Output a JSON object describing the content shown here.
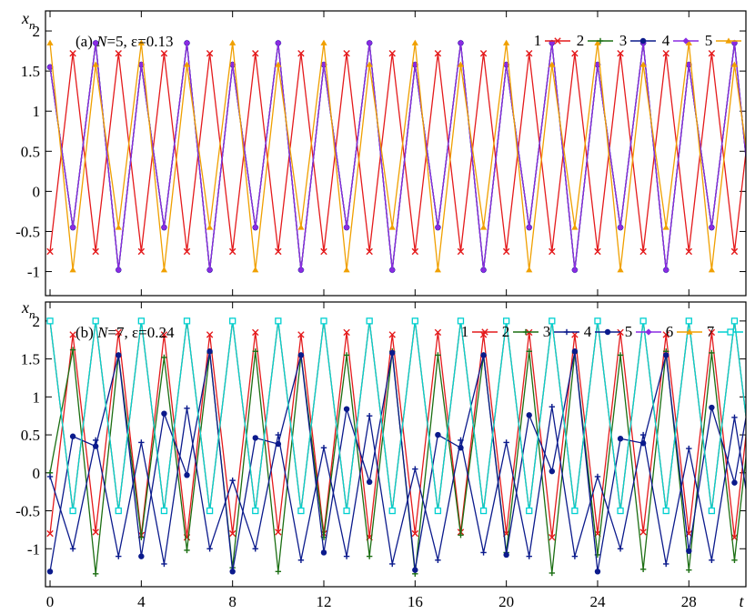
{
  "colors": {
    "1": "#e41a1c",
    "2": "#1b6e12",
    "3": "#0b1a8c",
    "4": "#8a2be2",
    "5": "#f0a000",
    "6": "#a52a2a",
    "7": "#00d0d0"
  },
  "chart_data": [
    {
      "type": "line",
      "title": "(a) N=5, ε=0.13",
      "title_parts": [
        "(a) ",
        "N",
        "=5, ε=0.13"
      ],
      "ylabel_main": "x",
      "ylabel_sub": "n",
      "xlabel": "t",
      "xlim": [
        -0.2,
        30.5
      ],
      "ylim": [
        -1.3,
        2.25
      ],
      "yticks": [
        -1,
        -0.5,
        0,
        0.5,
        1,
        1.5,
        2
      ],
      "ytick_labels": [
        "-1",
        "-0.5",
        "0",
        "0.5",
        "1",
        "1.5",
        "2"
      ],
      "xticks": [
        0,
        4,
        8,
        12,
        16,
        20,
        24,
        28
      ],
      "legend_position": "top-right",
      "legend_numbers": [
        "1",
        "2",
        "3",
        "4",
        "5"
      ],
      "series": [
        {
          "name": "1",
          "color_key": "1",
          "marker": "x",
          "values": [
            -0.75,
            1.72,
            -0.75,
            1.72,
            -0.75,
            1.72,
            -0.75,
            1.72,
            -0.75,
            1.72,
            -0.75,
            1.72,
            -0.75,
            1.72,
            -0.75,
            1.72,
            -0.75,
            1.72,
            -0.75,
            1.72,
            -0.75,
            1.72,
            -0.75,
            1.72,
            -0.75,
            1.72,
            -0.75,
            1.72,
            -0.75,
            1.72,
            -0.75,
            1.72
          ]
        },
        {
          "name": "2",
          "color_key": "2",
          "marker": "plus",
          "values": [
            1.55,
            -0.45,
            1.85,
            -0.98,
            1.58,
            -0.45,
            1.85,
            -0.98,
            1.58,
            -0.45,
            1.85,
            -0.98,
            1.58,
            -0.45,
            1.85,
            -0.98,
            1.58,
            -0.45,
            1.85,
            -0.98,
            1.58,
            -0.45,
            1.85,
            -0.98,
            1.58,
            -0.45,
            1.85,
            -0.98,
            1.58,
            -0.45,
            1.85,
            -0.98
          ]
        },
        {
          "name": "3",
          "color_key": "3",
          "marker": "circle",
          "values": [
            1.55,
            -0.45,
            1.85,
            -0.98,
            1.58,
            -0.45,
            1.85,
            -0.98,
            1.58,
            -0.45,
            1.85,
            -0.98,
            1.58,
            -0.45,
            1.85,
            -0.98,
            1.58,
            -0.45,
            1.85,
            -0.98,
            1.58,
            -0.45,
            1.85,
            -0.98,
            1.58,
            -0.45,
            1.85,
            -0.98,
            1.58,
            -0.45,
            1.85,
            -0.98
          ]
        },
        {
          "name": "4",
          "color_key": "4",
          "marker": "diamond",
          "values": [
            1.55,
            -0.45,
            1.85,
            -0.98,
            1.58,
            -0.45,
            1.85,
            -0.98,
            1.58,
            -0.45,
            1.85,
            -0.98,
            1.58,
            -0.45,
            1.85,
            -0.98,
            1.58,
            -0.45,
            1.85,
            -0.98,
            1.58,
            -0.45,
            1.85,
            -0.98,
            1.58,
            -0.45,
            1.85,
            -0.98,
            1.58,
            -0.45,
            1.85,
            -0.98
          ]
        },
        {
          "name": "5",
          "color_key": "5",
          "marker": "triangle",
          "values": [
            1.85,
            -0.98,
            1.58,
            -0.45,
            1.85,
            -0.98,
            1.58,
            -0.45,
            1.85,
            -0.98,
            1.58,
            -0.45,
            1.85,
            -0.98,
            1.58,
            -0.45,
            1.85,
            -0.98,
            1.58,
            -0.45,
            1.85,
            -0.98,
            1.58,
            -0.45,
            1.85,
            -0.98,
            1.58,
            -0.45,
            1.85,
            -0.98,
            1.58,
            -0.45
          ]
        }
      ]
    },
    {
      "type": "line",
      "title": "(b) N=7, ε=0.24",
      "title_parts": [
        "(b) ",
        "N",
        "=7, ε=0.24"
      ],
      "ylabel_main": "x",
      "ylabel_sub": "n",
      "xlabel": "t",
      "xlim": [
        -0.2,
        30.5
      ],
      "ylim": [
        -1.5,
        2.25
      ],
      "yticks": [
        -1,
        -0.5,
        0,
        0.5,
        1,
        1.5,
        2
      ],
      "ytick_labels": [
        "-1",
        "-0.5",
        "0",
        "0.5",
        "1",
        "1.5",
        "2"
      ],
      "xticks": [
        0,
        4,
        8,
        12,
        16,
        20,
        24,
        28
      ],
      "xtick_labels": [
        "0",
        "4",
        "8",
        "12",
        "16",
        "20",
        "24",
        "28"
      ],
      "legend_position": "top-right",
      "legend_numbers": [
        "1",
        "2",
        "3",
        "4",
        "5",
        "6",
        "7"
      ],
      "series": [
        {
          "name": "1",
          "color_key": "1",
          "marker": "x",
          "values": [
            -0.8,
            1.82,
            -0.78,
            1.85,
            -0.82,
            1.82,
            -0.85,
            1.82,
            -0.8,
            1.85,
            -0.78,
            1.82,
            -0.8,
            1.85,
            -0.85,
            1.82,
            -0.8,
            1.85,
            -0.78,
            1.82,
            -0.8,
            1.85,
            -0.85,
            1.82,
            -0.8,
            1.85,
            -0.78,
            1.82,
            -0.8,
            1.85,
            -0.85,
            1.82
          ]
        },
        {
          "name": "2",
          "color_key": "2",
          "marker": "plus",
          "values": [
            0.0,
            1.62,
            -1.33,
            1.55,
            -0.85,
            1.52,
            -1.02,
            1.58,
            -1.25,
            1.6,
            -1.3,
            1.55,
            -0.85,
            1.55,
            -1.1,
            1.6,
            -1.33,
            1.55,
            -0.82,
            1.55,
            -1.05,
            1.6,
            -1.32,
            1.58,
            -1.08,
            1.55,
            -1.27,
            1.6,
            -1.28,
            1.58,
            -1.15,
            1.55
          ]
        },
        {
          "name": "3",
          "color_key": "3",
          "marker": "plus",
          "values": [
            -0.05,
            -1.0,
            0.43,
            -1.1,
            0.4,
            -1.2,
            0.85,
            -1.0,
            -0.1,
            -1.0,
            0.5,
            -1.15,
            0.33,
            -1.1,
            0.75,
            -1.2,
            0.05,
            -1.15,
            0.43,
            -1.05,
            0.4,
            -1.1,
            0.87,
            -1.1,
            -0.05,
            -1.0,
            0.5,
            -1.2,
            0.32,
            -1.15,
            0.73,
            -1.15
          ]
        },
        {
          "name": "4",
          "color_key": "3",
          "marker": "circle",
          "values": [
            -1.3,
            0.48,
            0.35,
            1.55,
            -1.1,
            0.78,
            -0.03,
            1.6,
            -1.3,
            0.46,
            0.38,
            1.55,
            -1.05,
            0.84,
            -0.12,
            1.58,
            -1.28,
            0.5,
            0.33,
            1.55,
            -1.08,
            0.76,
            0.02,
            1.6,
            -1.3,
            0.45,
            0.39,
            1.55,
            -1.03,
            0.86,
            -0.13,
            1.58
          ]
        },
        {
          "name": "5",
          "color_key": "4",
          "marker": "diamond",
          "values": [
            2.0,
            -0.5,
            2.0,
            -0.5,
            2.0,
            -0.5,
            2.0,
            -0.5,
            2.0,
            -0.5,
            2.0,
            -0.5,
            2.0,
            -0.5,
            2.0,
            -0.5,
            2.0,
            -0.5,
            2.0,
            -0.5,
            2.0,
            -0.5,
            2.0,
            -0.5,
            2.0,
            -0.5,
            2.0,
            -0.5,
            2.0,
            -0.5,
            2.0,
            -0.5
          ]
        },
        {
          "name": "6",
          "color_key": "5",
          "marker": "triangle",
          "values": [
            2.0,
            -0.5,
            2.0,
            -0.5,
            2.0,
            -0.5,
            2.0,
            -0.5,
            2.0,
            -0.5,
            2.0,
            -0.5,
            2.0,
            -0.5,
            2.0,
            -0.5,
            2.0,
            -0.5,
            2.0,
            -0.5,
            2.0,
            -0.5,
            2.0,
            -0.5,
            2.0,
            -0.5,
            2.0,
            -0.5,
            2.0,
            -0.5,
            2.0,
            -0.5
          ]
        },
        {
          "name": "7",
          "color_key": "7",
          "marker": "square-open",
          "values": [
            2.0,
            -0.5,
            2.0,
            -0.5,
            2.0,
            -0.5,
            2.0,
            -0.5,
            2.0,
            -0.5,
            2.0,
            -0.5,
            2.0,
            -0.5,
            2.0,
            -0.5,
            2.0,
            -0.5,
            2.0,
            -0.5,
            2.0,
            -0.5,
            2.0,
            -0.5,
            2.0,
            -0.5,
            2.0,
            -0.5,
            2.0,
            -0.5,
            2.0,
            -0.5
          ]
        }
      ]
    }
  ]
}
